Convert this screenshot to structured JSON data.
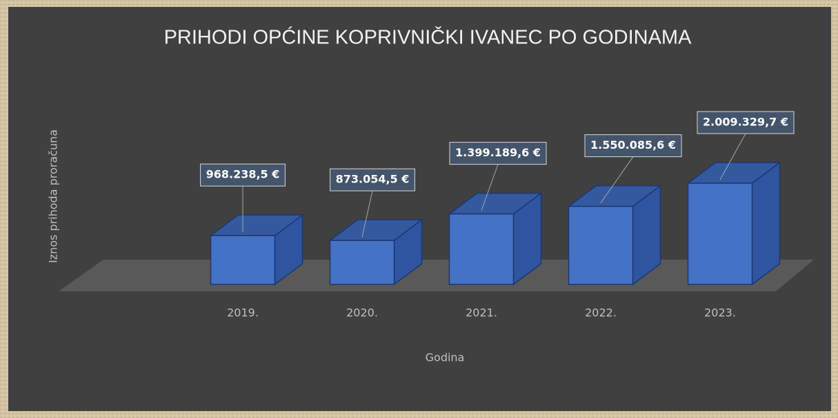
{
  "chart_data": {
    "type": "bar3d",
    "title": "PRIHODI OPĆINE KOPRIVNIČKI IVANEC PO GODINAMA",
    "x_label": "Godina",
    "y_label": "Iznos prihoda proračuna",
    "categories": [
      "2019.",
      "2020.",
      "2021.",
      "2022.",
      "2023."
    ],
    "values": [
      968238.5,
      873054.5,
      1399189.6,
      1550085.6,
      2009329.7
    ],
    "value_labels": [
      "968.238,5 €",
      "873.054,5 €",
      "1.399.189,6 €",
      "1.550.085,6 €",
      "2.009.329,7 €"
    ],
    "color": "#4472c4"
  }
}
